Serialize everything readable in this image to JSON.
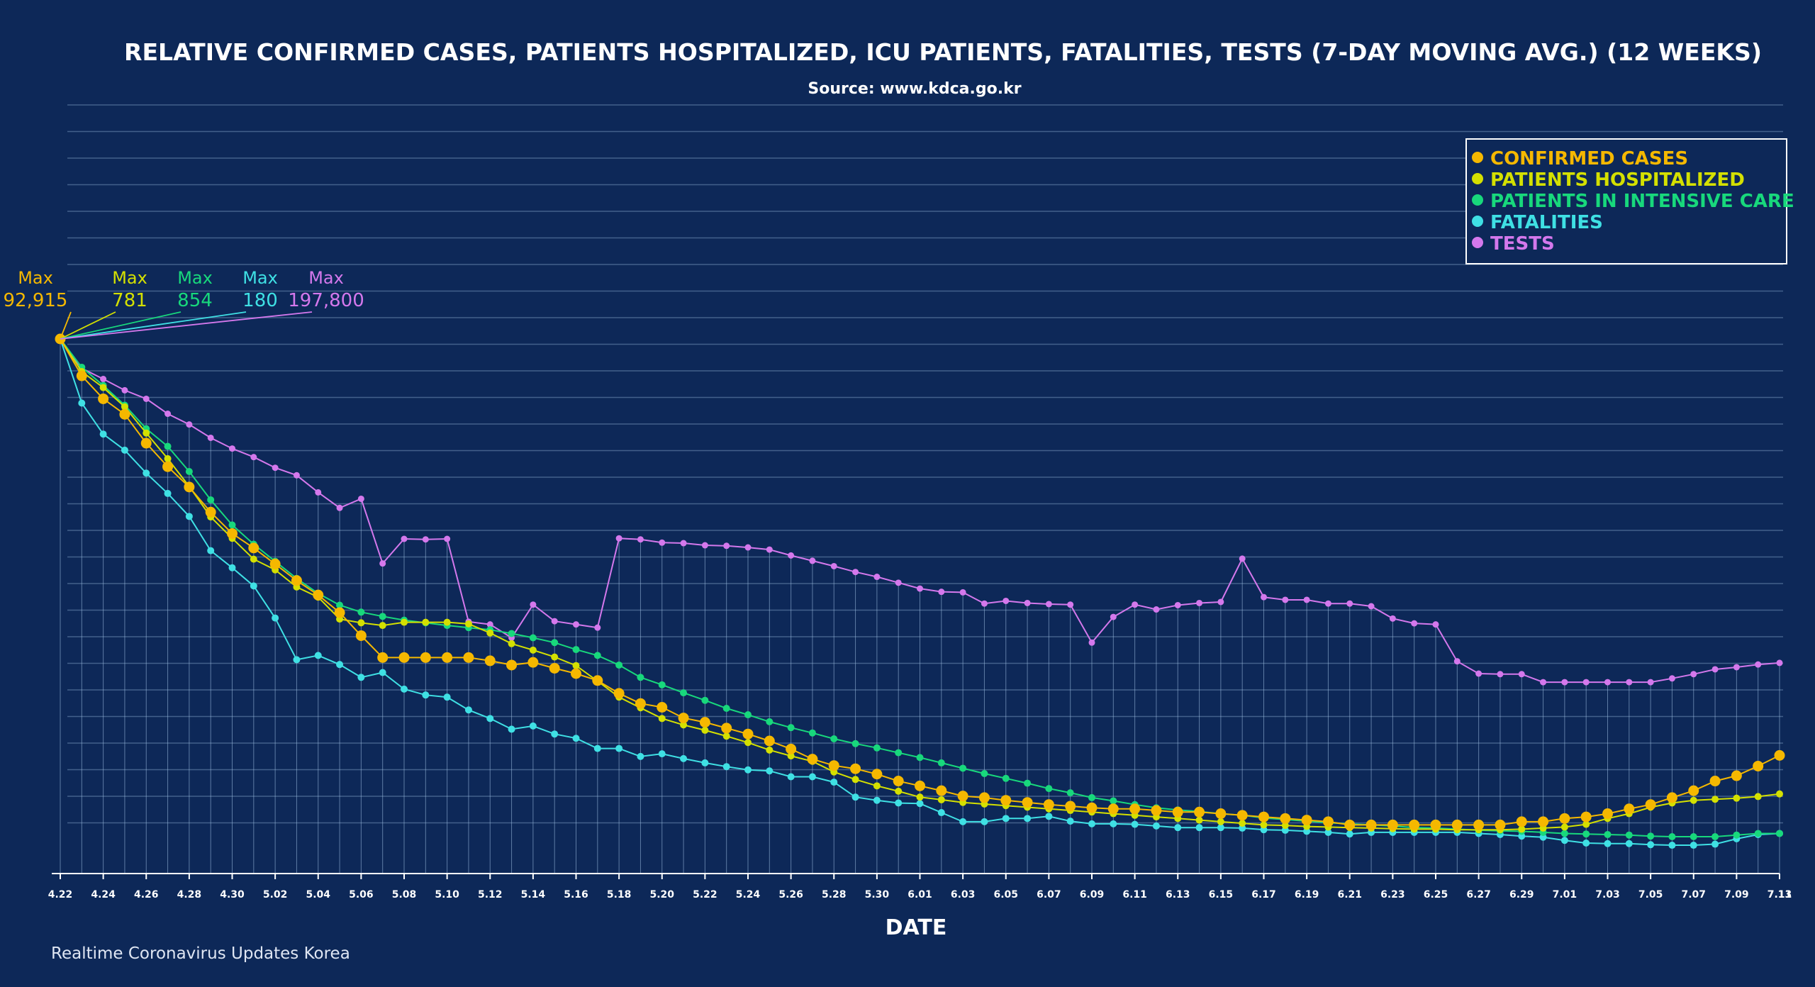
{
  "chart_data": {
    "type": "line",
    "title": "RELATIVE CONFIRMED CASES, PATIENTS HOSPITALIZED, ICU PATIENTS, FATALITIES, TESTS (7-DAY MOVING AVG.) (12 WEEKS)",
    "subtitle": "Source: www.kdca.go.kr",
    "xlabel": "DATE",
    "ylabel": "",
    "ylim": [
      0,
      100
    ],
    "grid": true,
    "legend_position": "top-right",
    "footer": "Realtime Coronavirus Updates Korea",
    "x_tick_labels": [
      "4.22",
      "4.24",
      "4.26",
      "4.28",
      "4.30",
      "5.02",
      "5.04",
      "5.06",
      "5.08",
      "5.10",
      "5.12",
      "5.14",
      "5.16",
      "5.18",
      "5.20",
      "5.22",
      "5.24",
      "5.26",
      "5.28",
      "5.30",
      "6.01",
      "6.03",
      "6.05",
      "6.07",
      "6.09",
      "6.11",
      "6.13",
      "6.15",
      "6.17",
      "6.19",
      "6.21",
      "6.23",
      "6.25",
      "6.27",
      "6.29",
      "7.01",
      "7.03",
      "7.05",
      "7.07",
      "7.09",
      "7.11",
      "7.13"
    ],
    "max_labels": [
      {
        "series": "CONFIRMED CASES",
        "label": "Max",
        "value": "92,915"
      },
      {
        "series": "PATIENTS HOSPITALIZED",
        "label": "Max",
        "value": "781"
      },
      {
        "series": "PATIENTS IN INTENSIVE CARE",
        "label": "Max",
        "value": "854"
      },
      {
        "series": "FATALITIES",
        "label": "Max",
        "value": "180"
      },
      {
        "series": "TESTS",
        "label": "Max",
        "value": "197,800"
      }
    ],
    "series": [
      {
        "name": "CONFIRMED CASES",
        "color": "#f5b800",
        "values": [
          100,
          93.1,
          88.8,
          85.9,
          80.5,
          76.1,
          72.3,
          67.6,
          63.6,
          60.9,
          57.9,
          54.8,
          52.1,
          48.8,
          44.5,
          40.4,
          40.4,
          40.4,
          40.4,
          40.4,
          39.8,
          39,
          39.5,
          38.4,
          37.4,
          36.1,
          33.7,
          31.8,
          31.1,
          29.1,
          28.3,
          27.2,
          26.1,
          24.8,
          23.3,
          21.4,
          20.2,
          19.6,
          18.6,
          17.3,
          16.4,
          15.5,
          14.5,
          14.2,
          13.7,
          13.3,
          12.9,
          12.6,
          12.3,
          12.1,
          12.1,
          11.8,
          11.5,
          11.5,
          11.2,
          10.9,
          10.6,
          10.3,
          10,
          9.7,
          9.1,
          9.1,
          9.1,
          9.1,
          9.1,
          9.1,
          9.1,
          9.1,
          9.7,
          9.7,
          10.3,
          10.6,
          11.2,
          12.1,
          12.9,
          14.2,
          15.5,
          17.3,
          18.3,
          20.1,
          22.1
        ]
      },
      {
        "name": "PATIENTS HOSPITALIZED",
        "color": "#d4e000",
        "values": [
          100,
          93.9,
          90.9,
          87.3,
          82.4,
          77.6,
          72.4,
          66.7,
          62.7,
          58.8,
          56.8,
          53.6,
          51.7,
          47.6,
          46.9,
          46.4,
          47,
          47,
          47,
          46.7,
          45,
          43,
          41.8,
          40.5,
          38.9,
          36,
          33,
          31,
          29,
          27.8,
          26.8,
          25.7,
          24.5,
          23.1,
          22,
          21,
          19,
          17.6,
          16.4,
          15.4,
          14.3,
          13.8,
          13.3,
          13,
          12.7,
          12.4,
          12.1,
          11.8,
          11.5,
          11.2,
          10.9,
          10.6,
          10.3,
          10,
          9.7,
          9.4,
          9.1,
          9,
          8.8,
          8.7,
          8.6,
          8.5,
          8.4,
          8.3,
          8.3,
          8.2,
          8.2,
          8.2,
          8.3,
          8.5,
          8.7,
          9.2,
          10.3,
          11.2,
          12.4,
          13.2,
          13.7,
          13.9,
          14.1,
          14.4,
          14.9
        ]
      },
      {
        "name": "PATIENTS IN INTENSIVE CARE",
        "color": "#18d87c",
        "values": [
          100,
          94.7,
          91.3,
          87.6,
          83.2,
          79.9,
          75.2,
          69.9,
          65.2,
          61.6,
          58.4,
          55.2,
          52.4,
          50.2,
          48.9,
          48.1,
          47.4,
          46.9,
          46.4,
          46,
          45.6,
          44.9,
          44.1,
          43.2,
          41.9,
          40.8,
          39,
          36.7,
          35.3,
          33.8,
          32.4,
          30.9,
          29.7,
          28.4,
          27.3,
          26.3,
          25.2,
          24.3,
          23.5,
          22.6,
          21.7,
          20.7,
          19.7,
          18.7,
          17.8,
          16.9,
          15.9,
          15.1,
          14.2,
          13.6,
          12.9,
          12.3,
          11.9,
          11.6,
          11.2,
          10.9,
          10.4,
          10.1,
          9.8,
          9.5,
          9.3,
          9.1,
          8.9,
          8.6,
          8.5,
          8.3,
          8.1,
          8,
          7.9,
          7.7,
          7.5,
          7.4,
          7.3,
          7.2,
          7,
          6.9,
          6.9,
          6.9,
          7.2,
          7.5,
          7.5
        ]
      },
      {
        "name": "FATALITIES",
        "color": "#3fe0e4",
        "values": [
          100,
          88,
          82.2,
          79.2,
          74.9,
          71.1,
          66.8,
          60.4,
          57.2,
          53.8,
          47.8,
          40,
          40.8,
          39.1,
          36.7,
          37.6,
          34.5,
          33.4,
          33,
          30.6,
          29,
          27,
          27.6,
          26.1,
          25.3,
          23.4,
          23.4,
          21.9,
          22.4,
          21.5,
          20.7,
          20,
          19.4,
          19.2,
          18.1,
          18.1,
          17.1,
          14.3,
          13.7,
          13.2,
          13.1,
          11.4,
          9.7,
          9.7,
          10.3,
          10.3,
          10.7,
          9.8,
          9.3,
          9.3,
          9.2,
          8.9,
          8.6,
          8.6,
          8.6,
          8.5,
          8.2,
          8.1,
          7.9,
          7.7,
          7.4,
          7.7,
          7.7,
          7.7,
          7.7,
          7.7,
          7.5,
          7.3,
          7,
          6.8,
          6.2,
          5.7,
          5.6,
          5.6,
          5.4,
          5.3,
          5.3,
          5.5,
          6.5,
          7.3,
          7.5
        ]
      },
      {
        "name": "TESTS",
        "color": "#d478ec",
        "values": [
          100,
          94.5,
          92.5,
          90.4,
          88.8,
          86,
          84,
          81.5,
          79.5,
          77.9,
          75.9,
          74.5,
          71.3,
          68.4,
          70.1,
          58,
          62.6,
          62.5,
          62.6,
          47.1,
          46.6,
          44.1,
          50.3,
          47.2,
          46.6,
          46,
          62.7,
          62.5,
          61.9,
          61.8,
          61.4,
          61.3,
          61,
          60.6,
          59.5,
          58.5,
          57.5,
          56.4,
          55.5,
          54.4,
          53.3,
          52.7,
          52.6,
          50.5,
          51,
          50.6,
          50.4,
          50.3,
          43.2,
          48,
          50.3,
          49.4,
          50.2,
          50.6,
          50.8,
          58.9,
          51.7,
          51.2,
          51.2,
          50.5,
          50.5,
          50,
          47.7,
          46.8,
          46.6,
          39.7,
          37.4,
          37.3,
          37.3,
          35.8,
          35.8,
          35.8,
          35.8,
          35.8,
          35.8,
          36.5,
          37.3,
          38.2,
          38.6,
          39.1,
          39.4
        ]
      }
    ]
  }
}
